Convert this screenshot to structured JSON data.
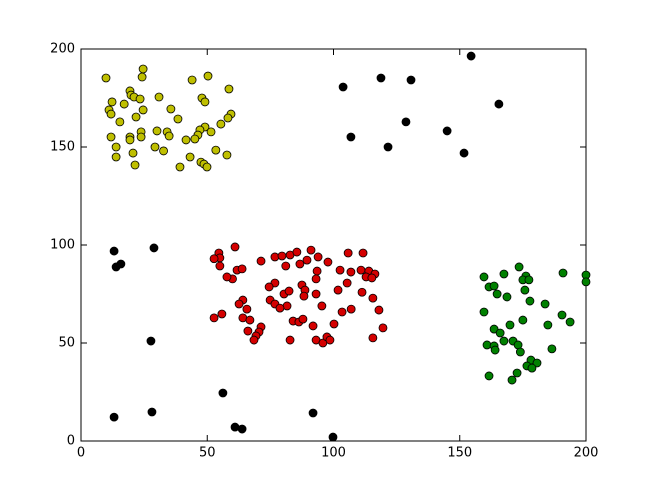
{
  "chart_data": {
    "type": "scatter",
    "xlim": [
      0,
      200
    ],
    "ylim": [
      0,
      200
    ],
    "xticks": [
      0,
      50,
      100,
      150,
      200
    ],
    "yticks": [
      0,
      50,
      100,
      150,
      200
    ],
    "grid": false,
    "series": [
      {
        "color": "#bfbf00",
        "x": [
          9.9,
          24.6,
          12.3,
          11.1,
          11.9,
          19.4,
          19.8,
          21,
          23.4,
          24.2,
          44,
          50.3,
          47.9,
          49.1,
          58.6,
          59.4,
          58.2,
          55.4,
          49.1,
          47.1,
          46.3,
          51.5,
          30.9,
          35.6,
          38.4,
          41.6,
          45.1,
          34.1,
          34.9,
          30.1,
          23.8,
          23.8,
          19.4,
          19.4,
          11.9,
          13.9,
          13.9,
          20.6,
          21.4,
          29.3,
          32.7,
          39.2,
          43.2,
          47.5,
          48.7,
          49.9,
          53.4,
          57.8,
          17.1,
          24.6,
          21.8,
          15.4
        ],
        "values": [
          185.2,
          189.8,
          173,
          168.9,
          166.8,
          178.6,
          176.5,
          175.5,
          174.5,
          185.7,
          184.2,
          186.2,
          175,
          173,
          179.6,
          166.8,
          164.8,
          161.7,
          160.2,
          158.7,
          156.1,
          157.7,
          175.5,
          169.4,
          164.3,
          153.6,
          154.1,
          157.7,
          155.6,
          158.2,
          157.7,
          155.1,
          155.1,
          153.6,
          155.1,
          150,
          144.9,
          146.9,
          140.8,
          150,
          148,
          139.8,
          144.9,
          142.3,
          141.3,
          139.8,
          148.4,
          145.9,
          171.9,
          168.9,
          165.3,
          162.8
        ]
      },
      {
        "color": "#000000",
        "x": [
          103.8,
          118.8,
          130.7,
          154.5,
          165.5,
          106.9,
          128.7,
          121.6,
          145,
          151.7,
          13.1,
          28.9,
          13.9,
          15.8,
          27.7,
          56.2,
          13.1,
          28.1,
          61,
          63.8,
          91.9,
          99.8
        ],
        "values": [
          180.6,
          185.2,
          184.2,
          196.4,
          171.9,
          155.1,
          162.8,
          150,
          158.2,
          146.9,
          96.9,
          98.5,
          88.8,
          90.3,
          51,
          24.5,
          12.2,
          14.8,
          7.1,
          6.1,
          14.3,
          2
        ]
      },
      {
        "color": "#d40000",
        "x": [
          61,
          54.6,
          55,
          52.7,
          55,
          61.8,
          63.8,
          60,
          57.8,
          71.3,
          76.8,
          79.6,
          82.8,
          85.5,
          91.1,
          93.9,
          97.8,
          105.8,
          111.7,
          102.6,
          106.9,
          110.9,
          114,
          116.4,
          112.9,
          115.2,
          105.4,
          93.5,
          93.1,
          86.7,
          89.5,
          81.1,
          76.8,
          74.5,
          80.4,
          82.4,
          87.5,
          88.7,
          88.3,
          93.1,
          101.8,
          111.3,
          115.6,
          118,
          107,
          103.4,
          95.4,
          81.6,
          74.9,
          76.8,
          78.8,
          64.1,
          62.6,
          65.7,
          52.7,
          55.8,
          64.1,
          66.9,
          66.1,
          71.3,
          70.5,
          69.3,
          68.5,
          84,
          86.3,
          87.9,
          91.9,
          100.2,
          82.8,
          93.1,
          95.8,
          97.4,
          98.6,
          115.6,
          119.6
        ],
        "values": [
          99,
          95.9,
          93.4,
          93,
          89.3,
          87.2,
          87.8,
          82.7,
          83.7,
          91.8,
          93.9,
          94.4,
          94.9,
          96.4,
          97.4,
          93.9,
          91.3,
          95.9,
          95.9,
          87.2,
          86.2,
          87.2,
          86.7,
          85.2,
          83.7,
          83.2,
          80.6,
          86.7,
          82.7,
          90.3,
          92.3,
          89.3,
          80.6,
          78.6,
          75,
          76.5,
          79.6,
          77,
          73.9,
          75,
          77,
          75.9,
          72.9,
          66.8,
          67.3,
          65.8,
          68.9,
          68.9,
          71.9,
          69.9,
          67.8,
          71.9,
          69.9,
          67.3,
          62.8,
          64.8,
          62.8,
          61.7,
          56.1,
          58.2,
          55.6,
          53.6,
          51.5,
          61.2,
          60.7,
          62.2,
          58.7,
          59.7,
          51.5,
          51.5,
          50,
          53.1,
          51.5,
          52.6,
          57.7
        ]
      },
      {
        "color": "#008000",
        "x": [
          159.6,
          173.5,
          167.5,
          176.2,
          175,
          177.4,
          161.6,
          163.6,
          164.8,
          168.7,
          175.8,
          177.8,
          183.8,
          190.9,
          200,
          200,
          190.5,
          193.7,
          184.9,
          175,
          169.9,
          163.6,
          166,
          159.6,
          160.8,
          163.6,
          164,
          167.5,
          171.1,
          173.1,
          174,
          186.5,
          178.2,
          180.6,
          176.6,
          178.6,
          172.7,
          170.7,
          161.6
        ],
        "values": [
          83.7,
          88.8,
          85.2,
          84.2,
          82.2,
          82.2,
          78.6,
          79.1,
          75,
          73.5,
          77,
          71.4,
          69.9,
          85.7,
          84.7,
          81.2,
          64.3,
          60.7,
          59.2,
          61.7,
          59.2,
          57.1,
          55.1,
          65.8,
          49,
          48.5,
          46.4,
          51,
          51,
          49,
          45.4,
          47,
          41.3,
          39.8,
          38.3,
          37.2,
          34.7,
          31.1,
          33.2
        ]
      }
    ]
  }
}
